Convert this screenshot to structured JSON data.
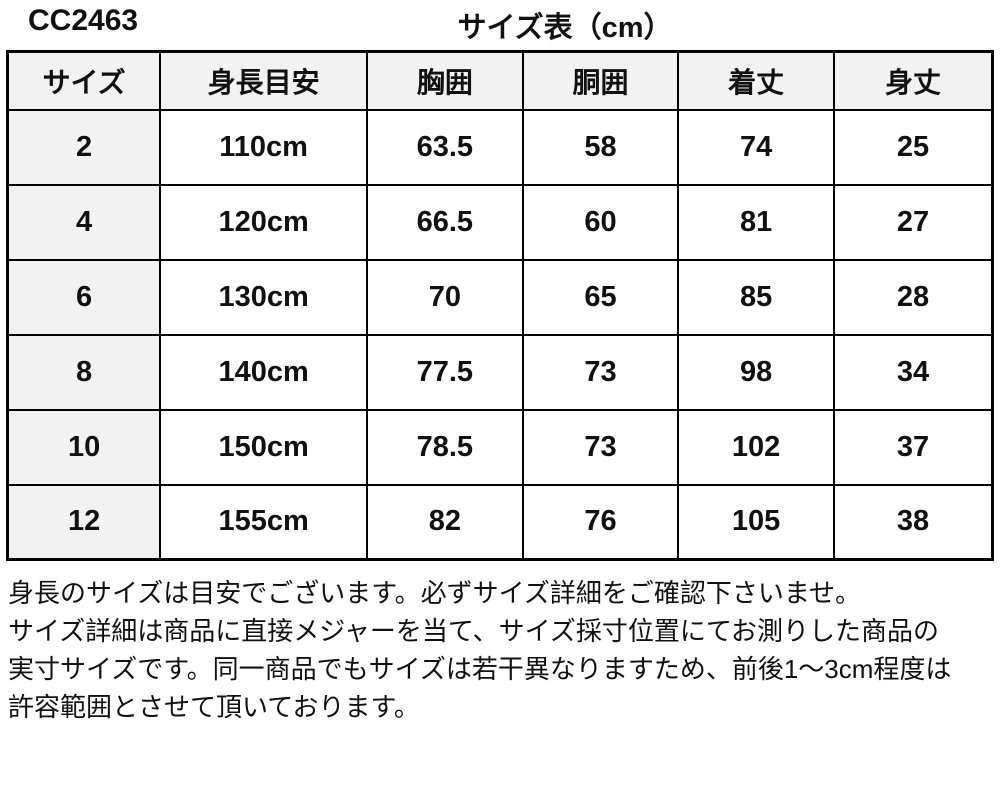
{
  "page": {
    "product_code": "CC2463",
    "title": "サイズ表（cm）"
  },
  "size_table": {
    "columns": [
      "サイズ",
      "身長目安",
      "胸囲",
      "胴囲",
      "着丈",
      "身丈"
    ],
    "rows": [
      [
        "2",
        "110cm",
        "63.5",
        "58",
        "74",
        "25"
      ],
      [
        "4",
        "120cm",
        "66.5",
        "60",
        "81",
        "27"
      ],
      [
        "6",
        "130cm",
        "70",
        "65",
        "85",
        "28"
      ],
      [
        "8",
        "140cm",
        "77.5",
        "73",
        "98",
        "34"
      ],
      [
        "10",
        "150cm",
        "78.5",
        "73",
        "102",
        "37"
      ],
      [
        "12",
        "155cm",
        "82",
        "76",
        "105",
        "38"
      ]
    ]
  },
  "notes": {
    "lines": [
      "身長のサイズは目安でございます。必ずサイズ詳細をご確認下さいませ。",
      "サイズ詳細は商品に直接メジャーを当て、サイズ採寸位置にてお測りした商品の",
      "実寸サイズです。同一商品でもサイズは若干異なりますため、前後1〜3cm程度は",
      "許容範囲とさせて頂いております。"
    ]
  },
  "colors": {
    "header_bg": "#f2f2f2",
    "row_label_bg": "#f2f2f2",
    "border": "#000000",
    "text": "#111111",
    "background": "#ffffff"
  }
}
